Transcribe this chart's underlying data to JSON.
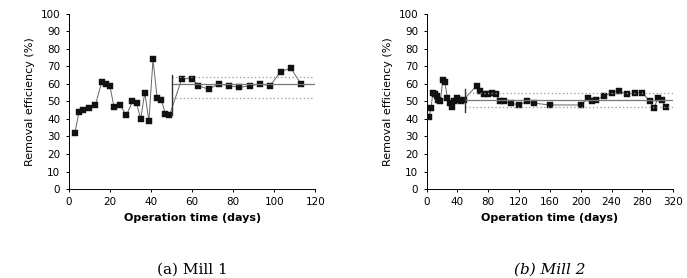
{
  "mill1": {
    "x": [
      3,
      5,
      7,
      10,
      13,
      16,
      18,
      20,
      22,
      25,
      28,
      31,
      33,
      35,
      37,
      39,
      41,
      43,
      45,
      47,
      49,
      55,
      60,
      63,
      68,
      73,
      78,
      83,
      88,
      93,
      98,
      103,
      108,
      113
    ],
    "y": [
      32,
      44,
      45,
      46,
      48,
      61,
      60,
      59,
      47,
      48,
      42,
      50,
      49,
      40,
      55,
      39,
      74,
      52,
      51,
      43,
      42,
      63,
      63,
      59,
      57,
      60,
      59,
      58,
      59,
      60,
      59,
      67,
      69,
      60
    ],
    "vline_x": 50,
    "vline_ymin": 42,
    "vline_ymax": 65,
    "hline_mean": 60,
    "hline_upper": 64,
    "hline_lower": 52,
    "xlabel": "Operation time (days)",
    "ylabel": "Removal efficiency (%)",
    "title": "(a) Mill 1",
    "xlim": [
      0,
      120
    ],
    "ylim": [
      0,
      100
    ],
    "xticks": [
      0,
      20,
      40,
      60,
      80,
      100,
      120
    ],
    "yticks": [
      0,
      10,
      20,
      30,
      40,
      50,
      60,
      70,
      80,
      90,
      100
    ]
  },
  "mill2": {
    "x": [
      3,
      6,
      8,
      11,
      13,
      15,
      18,
      21,
      24,
      27,
      30,
      33,
      36,
      39,
      42,
      45,
      48,
      65,
      70,
      75,
      80,
      85,
      90,
      95,
      100,
      110,
      120,
      130,
      140,
      160,
      200,
      210,
      215,
      220,
      230,
      240,
      250,
      260,
      270,
      280,
      290,
      295,
      300,
      305,
      310
    ],
    "y": [
      41,
      46,
      55,
      54,
      53,
      51,
      50,
      62,
      61,
      52,
      49,
      47,
      50,
      52,
      51,
      50,
      51,
      59,
      56,
      54,
      54,
      55,
      54,
      50,
      50,
      49,
      48,
      50,
      49,
      48,
      48,
      52,
      50,
      51,
      53,
      55,
      56,
      54,
      55,
      55,
      50,
      46,
      52,
      51,
      47
    ],
    "vline_x": 50,
    "vline_ymin": 44,
    "vline_ymax": 57,
    "hline_mean": 51,
    "hline_upper": 55,
    "hline_lower": 47,
    "xlabel": "Operation time (days)",
    "ylabel": "Removal efficiency (%)",
    "title": "(b) Mill 2",
    "xlim": [
      0,
      320
    ],
    "ylim": [
      0,
      100
    ],
    "xticks": [
      0,
      40,
      80,
      120,
      160,
      200,
      240,
      280,
      320
    ],
    "yticks": [
      0,
      10,
      20,
      30,
      40,
      50,
      60,
      70,
      80,
      90,
      100
    ]
  },
  "marker": "s",
  "marker_size": 4,
  "line_color": "#666666",
  "dot_color": "#111111",
  "vline_color": "#333333",
  "hline_color": "#777777",
  "dotted_line_color": "#999999",
  "title_fontsize": 11,
  "label_fontsize": 8,
  "tick_fontsize": 7.5
}
